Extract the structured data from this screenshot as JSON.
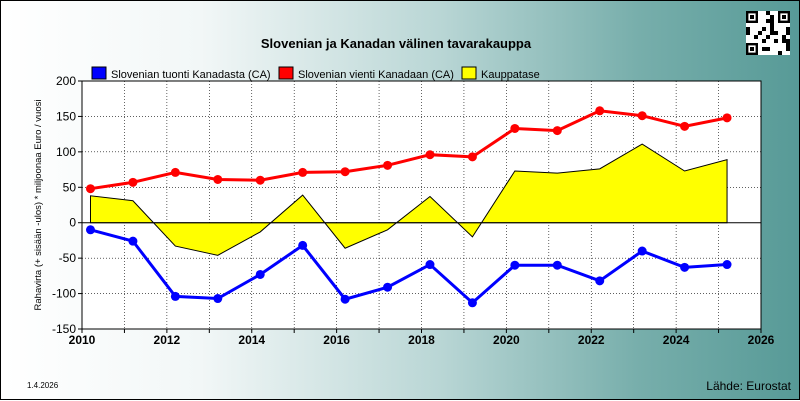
{
  "chart_data": {
    "type": "line",
    "title": "Slovenian ja Kanadan välinen tavarakauppa",
    "ylabel": "Rahavirta (+ sisään -ulos)  * miljoonaa Euro / vuosi",
    "xlabel": "",
    "xlim": [
      2010,
      2026
    ],
    "ylim": [
      -150,
      200
    ],
    "x_ticks": [
      2010,
      2012,
      2014,
      2016,
      2018,
      2020,
      2022,
      2024,
      2026
    ],
    "y_ticks": [
      -150,
      -100,
      -50,
      0,
      50,
      100,
      150,
      200
    ],
    "grid": true,
    "legend_position": "top",
    "x": [
      2010.2,
      2011.2,
      2012.2,
      2013.2,
      2014.2,
      2015.2,
      2016.2,
      2017.2,
      2018.2,
      2019.2,
      2020.2,
      2021.2,
      2022.2,
      2023.2,
      2024.2,
      2025.2
    ],
    "series": [
      {
        "name": "Slovenian tuonti Kanadasta (CA)",
        "color": "#0000ff",
        "kind": "line",
        "values": [
          -10,
          -26,
          -104,
          -107,
          -73,
          -32,
          -108,
          -91,
          -59,
          -113,
          -60,
          -60,
          -82,
          -40,
          -63,
          -59
        ]
      },
      {
        "name": "Slovenian vienti Kanadaan (CA)",
        "color": "#ff0000",
        "kind": "line",
        "values": [
          48,
          57,
          71,
          61,
          60,
          71,
          72,
          81,
          96,
          93,
          133,
          130,
          158,
          151,
          136,
          148
        ]
      },
      {
        "name": "Kauppatase",
        "color": "#ffff00",
        "kind": "area",
        "values": [
          38,
          31,
          -33,
          -46,
          -13,
          39,
          -36,
          -10,
          37,
          -20,
          73,
          70,
          76,
          111,
          73,
          89
        ]
      }
    ]
  },
  "footer": {
    "date": "1.4.2026",
    "source": "Lähde: Eurostat"
  },
  "icons": {
    "qr": "qr-code-icon"
  }
}
